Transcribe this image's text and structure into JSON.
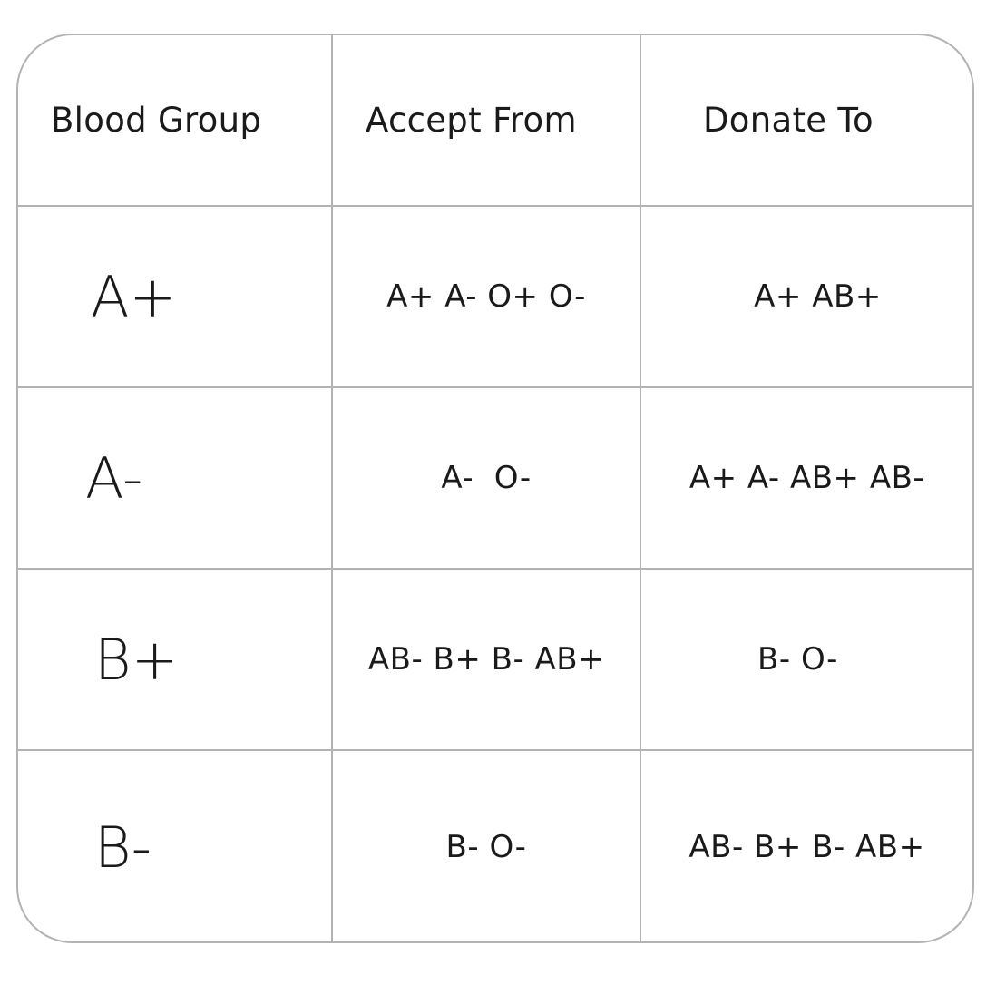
{
  "table": {
    "headers": [
      "Blood Group",
      "Accept From",
      "Donate To"
    ],
    "rows": [
      {
        "group": "A+",
        "accept_from": "A+ A- O+ O-",
        "donate_to": "A+ AB+"
      },
      {
        "group": "A-",
        "accept_from": "A-  O-",
        "donate_to": "A+ A- AB+ AB-"
      },
      {
        "group": "B+",
        "accept_from": "AB- B+ B- AB+",
        "donate_to": "B- O-"
      },
      {
        "group": "B-",
        "accept_from": "B- O-",
        "donate_to": "AB- B+ B- AB+"
      }
    ]
  }
}
